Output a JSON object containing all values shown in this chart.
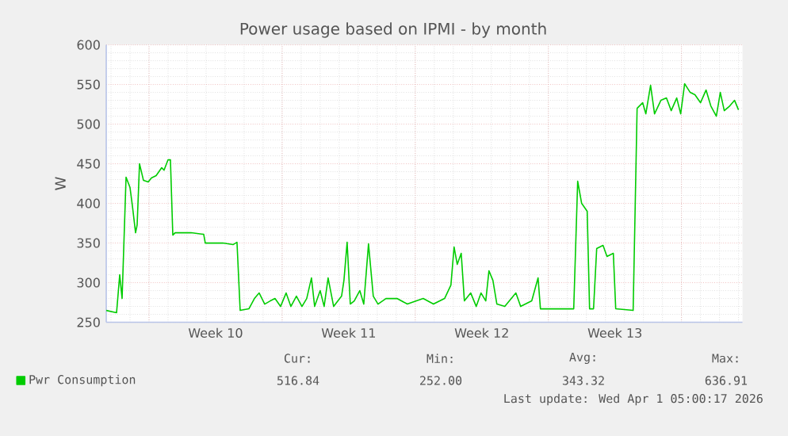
{
  "chart_data": {
    "type": "line",
    "title": "Power usage based on IPMI - by month",
    "ylabel": "W",
    "x": [
      "2026-02-26T18:00",
      "2026-02-27T07:00",
      "2026-02-27T11:00",
      "2026-02-27T14:00",
      "2026-02-27T19:00",
      "2026-02-28T00:00",
      "2026-02-28T03:00",
      "2026-02-28T07:00",
      "2026-02-28T09:00",
      "2026-02-28T12:00",
      "2026-02-28T17:00",
      "2026-02-28T23:00",
      "2026-03-01T03:00",
      "2026-03-01T09:00",
      "2026-03-01T16:00",
      "2026-03-01T19:00",
      "2026-03-02T00:00",
      "2026-03-02T03:00",
      "2026-03-02T06:00",
      "2026-03-02T09:00",
      "2026-03-03T05:00",
      "2026-03-03T21:00",
      "2026-03-03T23:00",
      "2026-03-04T21:00",
      "2026-03-05T10:00",
      "2026-03-05T15:00",
      "2026-03-05T19:00",
      "2026-03-06T06:00",
      "2026-03-06T13:00",
      "2026-03-06T19:00",
      "2026-03-07T02:00",
      "2026-03-07T09:00",
      "2026-03-07T15:00",
      "2026-03-07T22:00",
      "2026-03-08T05:00",
      "2026-03-08T11:00",
      "2026-03-08T18:00",
      "2026-03-09T01:00",
      "2026-03-09T07:00",
      "2026-03-09T13:00",
      "2026-03-09T17:00",
      "2026-03-10T00:00",
      "2026-03-10T05:00",
      "2026-03-10T10:00",
      "2026-03-10T17:00",
      "2026-03-11T03:00",
      "2026-03-11T06:00",
      "2026-03-11T10:00",
      "2026-03-11T14:00",
      "2026-03-11T19:00",
      "2026-03-12T02:00",
      "2026-03-12T07:00",
      "2026-03-12T13:00",
      "2026-03-12T19:00",
      "2026-03-13T01:00",
      "2026-03-13T11:00",
      "2026-03-14T01:00",
      "2026-03-14T14:00",
      "2026-03-15T10:00",
      "2026-03-15T23:00",
      "2026-03-16T13:00",
      "2026-03-16T21:00",
      "2026-03-17T01:00",
      "2026-03-17T05:00",
      "2026-03-17T10:00",
      "2026-03-17T14:00",
      "2026-03-17T22:00",
      "2026-03-18T05:00",
      "2026-03-18T11:00",
      "2026-03-18T17:00",
      "2026-03-18T21:00",
      "2026-03-19T02:00",
      "2026-03-19T07:00",
      "2026-03-19T17:00",
      "2026-03-20T07:00",
      "2026-03-20T13:00",
      "2026-03-21T03:00",
      "2026-03-21T11:00",
      "2026-03-21T14:00",
      "2026-03-23T08:00",
      "2026-03-23T13:00",
      "2026-03-23T18:00",
      "2026-03-24T01:00",
      "2026-03-24T04:00",
      "2026-03-24T09:00",
      "2026-03-24T13:00",
      "2026-03-24T21:00",
      "2026-03-25T02:00",
      "2026-03-25T10:00",
      "2026-03-25T13:00",
      "2026-03-26T11:00",
      "2026-03-26T16:00",
      "2026-03-26T23:00",
      "2026-03-27T03:00",
      "2026-03-27T09:00",
      "2026-03-27T14:00",
      "2026-03-27T22:00",
      "2026-03-28T05:00",
      "2026-03-28T11:00",
      "2026-03-28T18:00",
      "2026-03-28T23:00",
      "2026-03-29T04:00",
      "2026-03-29T11:00",
      "2026-03-29T17:00",
      "2026-03-30T00:00",
      "2026-03-30T07:00",
      "2026-03-30T13:00",
      "2026-03-30T20:00",
      "2026-03-31T01:00",
      "2026-03-31T06:00",
      "2026-03-31T13:00",
      "2026-03-31T19:00",
      "2026-04-01T00:00"
    ],
    "series": [
      {
        "name": "Pwr Consumption",
        "color": "#00cc00",
        "values": [
          265,
          262,
          310,
          280,
          433,
          420,
          397,
          363,
          373,
          450,
          429,
          427,
          432,
          435,
          445,
          442,
          455,
          455,
          360,
          363,
          363,
          361,
          350,
          350,
          348,
          351,
          265,
          267,
          280,
          287,
          273,
          277,
          280,
          270,
          287,
          270,
          283,
          270,
          280,
          306,
          270,
          290,
          270,
          306,
          270,
          283,
          303,
          351,
          273,
          277,
          290,
          273,
          349,
          283,
          273,
          280,
          280,
          273,
          280,
          273,
          280,
          297,
          345,
          323,
          337,
          277,
          287,
          270,
          287,
          277,
          315,
          303,
          273,
          270,
          287,
          270,
          277,
          306,
          267,
          267,
          428,
          400,
          390,
          267,
          267,
          343,
          347,
          333,
          337,
          267,
          265,
          520,
          527,
          513,
          549,
          513,
          530,
          533,
          517,
          533,
          513,
          551,
          540,
          537,
          527,
          543,
          523,
          510,
          540,
          517,
          523,
          530,
          518
        ]
      }
    ],
    "xlim": [
      "2026-02-26T18:00",
      "2026-04-01T05:00"
    ],
    "ylim": [
      250,
      600
    ],
    "xticks": [
      {
        "value": "2026-03-01T00:00",
        "label": null
      },
      {
        "value": "2026-03-04T12:00",
        "label": "Week 10"
      },
      {
        "value": "2026-03-08T00:00",
        "label": null
      },
      {
        "value": "2026-03-11T12:00",
        "label": "Week 11"
      },
      {
        "value": "2026-03-15T00:00",
        "label": null
      },
      {
        "value": "2026-03-18T12:00",
        "label": "Week 12"
      },
      {
        "value": "2026-03-22T00:00",
        "label": null
      },
      {
        "value": "2026-03-25T12:00",
        "label": "Week 13"
      },
      {
        "value": "2026-03-29T00:00",
        "label": null
      }
    ],
    "yticks": [
      250,
      300,
      350,
      400,
      450,
      500,
      550,
      600
    ],
    "grid": true,
    "legend": "bottom",
    "annotations": [
      "Cur:",
      "516.84",
      "Min:",
      "252.00",
      "Avg:",
      "343.32",
      "Max:",
      "636.91",
      "Last update: Wed Apr  1 05:00:17 2026"
    ]
  }
}
